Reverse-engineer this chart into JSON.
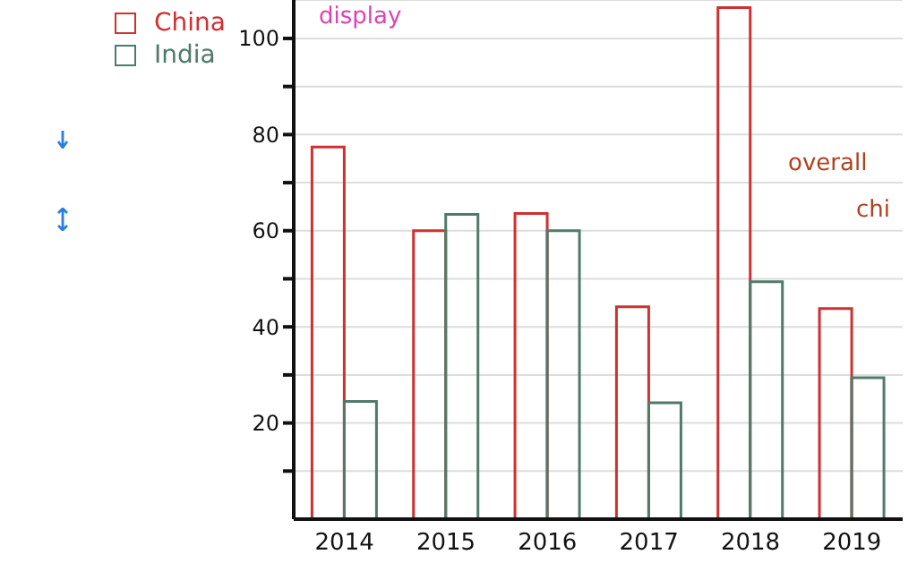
{
  "chart_data": {
    "type": "bar",
    "categories": [
      "2014",
      "2015",
      "2016",
      "2017",
      "2018",
      "2019"
    ],
    "series": [
      {
        "name": "China",
        "color": "#d03030",
        "values": [
          77.4,
          60,
          63.6,
          44.2,
          106.4,
          43.8
        ]
      },
      {
        "name": "India",
        "color": "#507a6a",
        "values": [
          24.5,
          63.4,
          60,
          24.2,
          49.4,
          29.4
        ]
      }
    ],
    "ylim": [
      0,
      108
    ],
    "yticks": [
      {
        "value": 10,
        "label": null
      },
      20,
      {
        "value": 30,
        "label": null
      },
      40,
      {
        "value": 50,
        "label": null
      },
      60,
      {
        "value": 70,
        "label": null
      },
      80,
      {
        "value": 90,
        "label": null
      },
      100
    ],
    "grid": "y",
    "legend": "top left",
    "annotations": [
      "display",
      "overall",
      "chi"
    ]
  }
}
